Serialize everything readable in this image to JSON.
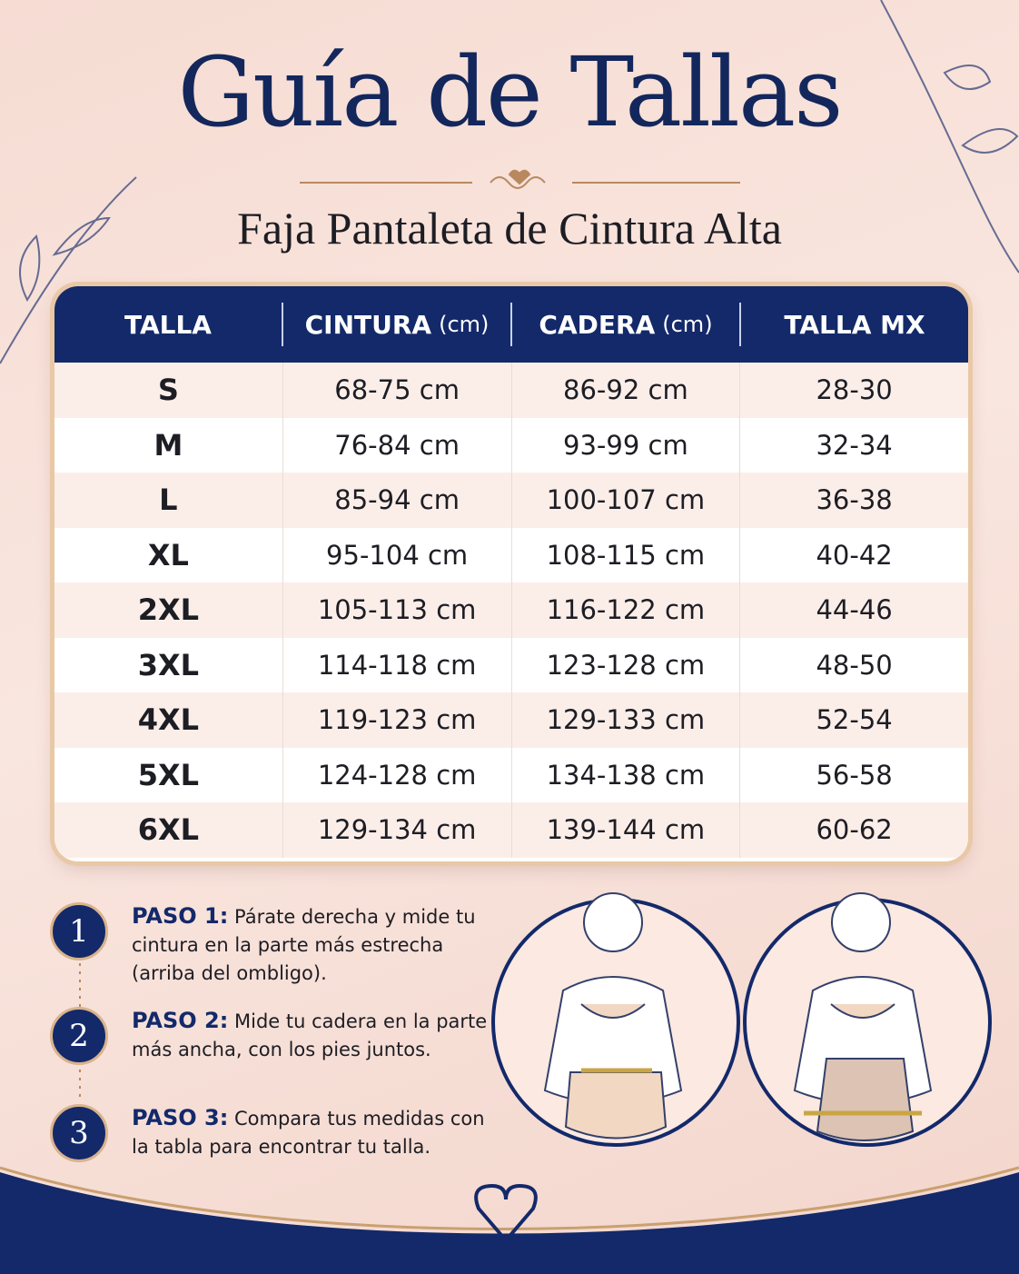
{
  "header": {
    "title": "Guía de Tallas",
    "subtitle": "Faja Pantaleta de Cintura Alta"
  },
  "table": {
    "columns": [
      {
        "label": "TALLA"
      },
      {
        "label": "CINTURA",
        "unit": "(cm)"
      },
      {
        "label": "CADERA",
        "unit": "(cm)"
      },
      {
        "label": "TALLA MX"
      }
    ],
    "rows": [
      [
        "S",
        "68-75 cm",
        "86-92 cm",
        "28-30"
      ],
      [
        "M",
        "76-84 cm",
        "93-99 cm",
        "32-34"
      ],
      [
        "L",
        "85-94 cm",
        "100-107 cm",
        "36-38"
      ],
      [
        "XL",
        "95-104 cm",
        "108-115 cm",
        "40-42"
      ],
      [
        "2XL",
        "105-113 cm",
        "116-122 cm",
        "44-46"
      ],
      [
        "3XL",
        "114-118 cm",
        "123-128 cm",
        "48-50"
      ],
      [
        "4XL",
        "119-123 cm",
        "129-133 cm",
        "52-54"
      ],
      [
        "5XL",
        "124-128 cm",
        "134-138 cm",
        "56-58"
      ],
      [
        "6XL",
        "129-134 cm",
        "139-144 cm",
        "60-62"
      ]
    ]
  },
  "steps": [
    {
      "number": "1",
      "label": "PASO 1:",
      "text": "Párate derecha y mide tu cintura en la parte más estrecha (arriba del ombligo)."
    },
    {
      "number": "2",
      "label": "PASO 2:",
      "text": "Mide tu cadera en la parte más ancha, con los pies juntos."
    },
    {
      "number": "3",
      "label": "PASO 3:",
      "text": "Compara tus medidas con la tabla para encontrar tu talla."
    }
  ]
}
